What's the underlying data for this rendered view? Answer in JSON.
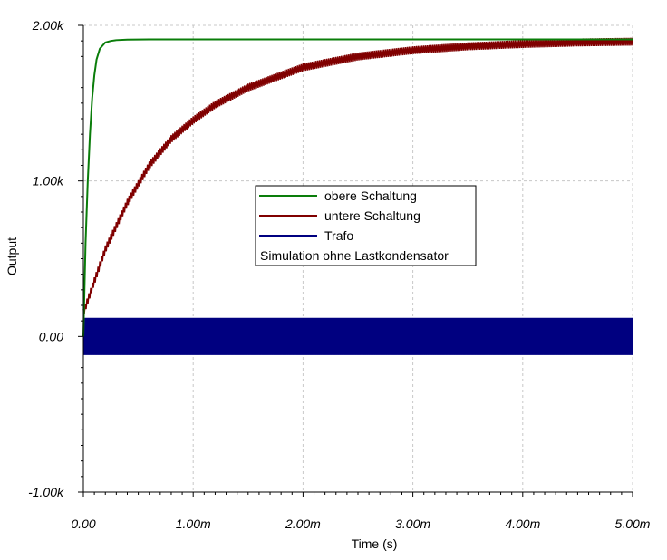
{
  "chart_data": {
    "type": "line",
    "xlabel": "Time (s)",
    "ylabel": "Output",
    "xlim": [
      0,
      0.005
    ],
    "ylim": [
      -1000,
      2000
    ],
    "grid": true,
    "x_ticks": [
      {
        "value": 0,
        "label": "0.00"
      },
      {
        "value": 0.001,
        "label": "1.00m"
      },
      {
        "value": 0.002,
        "label": "2.00m"
      },
      {
        "value": 0.003,
        "label": "3.00m"
      },
      {
        "value": 0.004,
        "label": "4.00m"
      },
      {
        "value": 0.005,
        "label": "5.00m"
      }
    ],
    "y_ticks": [
      {
        "value": 2000,
        "label": "2.00k"
      },
      {
        "value": 1000,
        "label": "1.00k"
      },
      {
        "value": 0,
        "label": "0.00"
      },
      {
        "value": -1000,
        "label": "-1.00k"
      }
    ],
    "legend_placement": "center",
    "annotation": "Simulation ohne Lastkondensator",
    "series": [
      {
        "name": "obere Schaltung",
        "color": "#0a7d0a",
        "x": [
          0,
          2e-05,
          4e-05,
          6e-05,
          8e-05,
          0.0001,
          0.00012,
          0.00015,
          0.0002,
          0.00025,
          0.0003,
          0.0004,
          0.0006,
          0.001,
          0.002,
          0.003,
          0.004,
          0.005
        ],
        "y": [
          0,
          600,
          1000,
          1300,
          1530,
          1680,
          1780,
          1850,
          1890,
          1900,
          1905,
          1908,
          1910,
          1910,
          1910,
          1910,
          1910,
          1910
        ]
      },
      {
        "name": "untere Schaltung",
        "color": "#800000",
        "ripple": 25,
        "x": [
          0,
          0.0002,
          0.0004,
          0.0006,
          0.0008,
          0.001,
          0.0012,
          0.0015,
          0.002,
          0.0025,
          0.003,
          0.0035,
          0.004,
          0.0045,
          0.005
        ],
        "y": [
          150,
          560,
          860,
          1100,
          1270,
          1390,
          1490,
          1600,
          1730,
          1800,
          1840,
          1865,
          1880,
          1890,
          1895
        ]
      },
      {
        "name": "Trafo",
        "color": "#000080",
        "amplitude": 120,
        "offset": 0,
        "x": [
          0,
          0.005
        ],
        "y": [
          0,
          0
        ]
      }
    ]
  }
}
